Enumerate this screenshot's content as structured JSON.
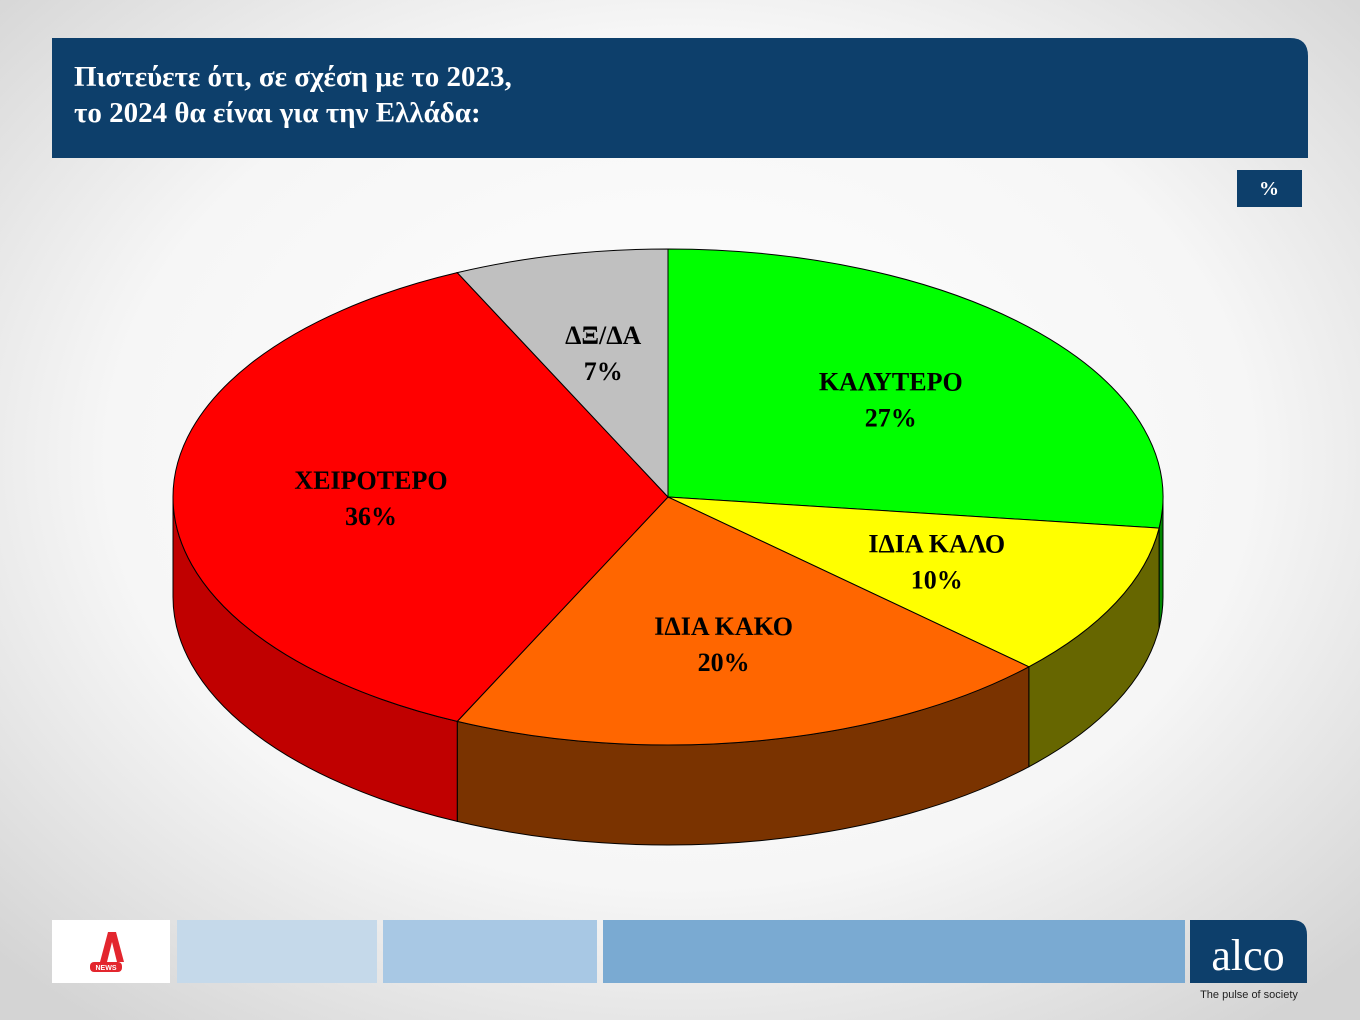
{
  "chart_data": {
    "type": "pie",
    "title": [
      "Πιστεύετε ότι, σε σχέση με το 2023,",
      "το 2024 θα είναι για την Ελλάδα:"
    ],
    "unit_badge": "%",
    "categories": [
      "ΚΑΛΥΤΕΡΟ",
      "ΙΔΙΑ ΚΑΛΟ",
      "ΙΔΙΑ ΚΑΚΟ",
      "ΧΕΙΡΟΤΕΡΟ",
      "ΔΞ/ΔΑ"
    ],
    "values": [
      27,
      10,
      20,
      36,
      7
    ],
    "value_labels": [
      "27%",
      "10%",
      "20%",
      "36%",
      "7%"
    ],
    "colors": [
      "#00ff00",
      "#ffff00",
      "#ff6600",
      "#ff0000",
      "#c0c0c0"
    ],
    "side_colors": [
      "#008800",
      "#666600",
      "#7a3300",
      "#c00000",
      "#808080"
    ]
  },
  "footer": {
    "news_logo": "NEWS",
    "brand": "alco",
    "tagline": "The pulse of society"
  }
}
